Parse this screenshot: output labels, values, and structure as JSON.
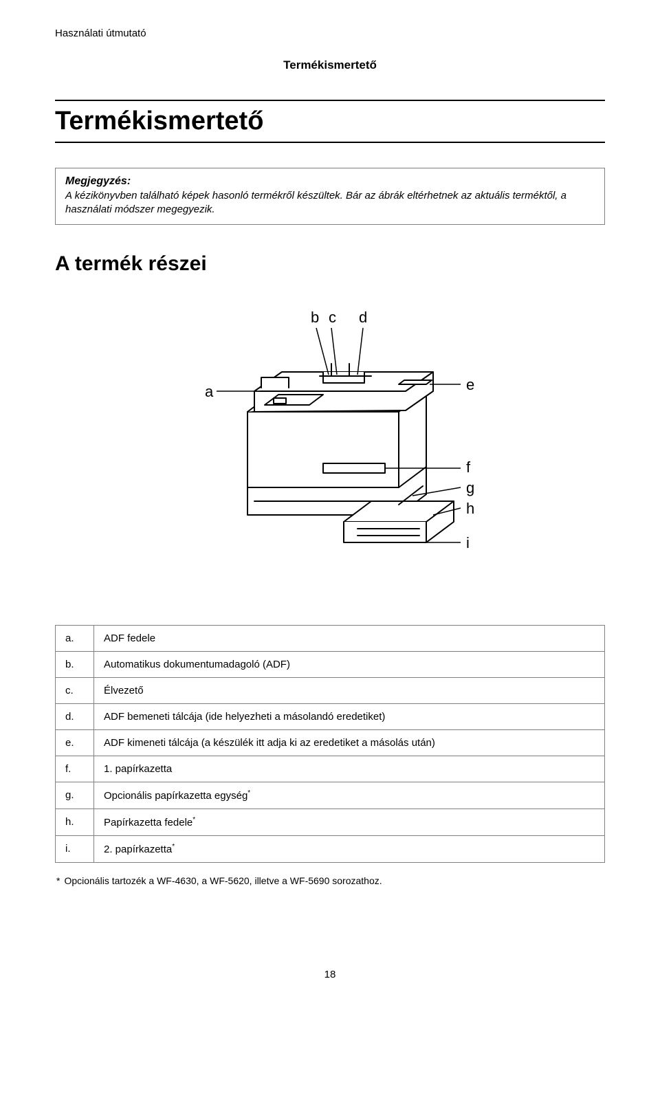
{
  "runningHeader": "Használati útmutató",
  "chapterLabel": "Termékismertető",
  "pageTitle": "Termékismertető",
  "note": {
    "heading": "Megjegyzés:",
    "body": "A kézikönyvben található képek hasonló termékről készültek. Bár az ábrák eltérhetnek az aktuális terméktől, a használati módszer megegyezik."
  },
  "sectionTitle": "A termék részei",
  "diagram": {
    "labels": {
      "a": "a",
      "b": "b",
      "c": "c",
      "d": "d",
      "e": "e",
      "f": "f",
      "g": "g",
      "h": "h",
      "i": "i"
    },
    "stroke": "#000000",
    "fill": "#ffffff",
    "labelFontSize": 22,
    "labelFontFamily": "Arial, sans-serif",
    "lineWidth": 2
  },
  "parts": {
    "rows": [
      {
        "letter": "a.",
        "desc": "ADF fedele",
        "star": false
      },
      {
        "letter": "b.",
        "desc": "Automatikus dokumentumadagoló (ADF)",
        "star": false
      },
      {
        "letter": "c.",
        "desc": "Élvezető",
        "star": false
      },
      {
        "letter": "d.",
        "desc": "ADF bemeneti tálcája (ide helyezheti a másolandó eredetiket)",
        "star": false
      },
      {
        "letter": "e.",
        "desc": "ADF kimeneti tálcája (a készülék itt adja ki az eredetiket a másolás után)",
        "star": false
      },
      {
        "letter": "f.",
        "desc": "1. papírkazetta",
        "star": false
      },
      {
        "letter": "g.",
        "desc": "Opcionális papírkazetta egység",
        "star": true
      },
      {
        "letter": "h.",
        "desc": "Papírkazetta fedele",
        "star": true
      },
      {
        "letter": "i.",
        "desc": "2. papírkazetta",
        "star": true
      }
    ]
  },
  "footnote": "Opcionális tartozék a WF-4630, a WF-5620, illetve a WF-5690 sorozathoz.",
  "footnoteStar": "*",
  "pageNumber": "18"
}
